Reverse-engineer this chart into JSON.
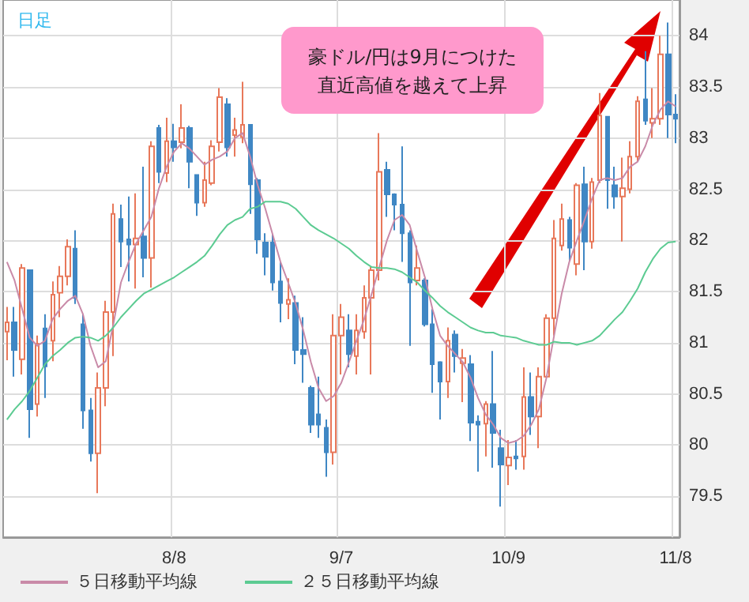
{
  "chart_data": {
    "type": "candlestick",
    "title": "日足",
    "annotations": [
      "豪ドル/円は9月につけた",
      "直近高値を越えて上昇"
    ],
    "categories": [
      null,
      null,
      null,
      null,
      null,
      null,
      null,
      null,
      null,
      null,
      null,
      null,
      null,
      null,
      null,
      null,
      null,
      null,
      null,
      null,
      null,
      null,
      "8/8",
      null,
      null,
      null,
      null,
      null,
      null,
      null,
      null,
      null,
      null,
      null,
      null,
      null,
      null,
      null,
      null,
      null,
      null,
      null,
      null,
      null,
      "9/7",
      null,
      null,
      null,
      null,
      null,
      null,
      null,
      null,
      null,
      null,
      null,
      null,
      null,
      null,
      null,
      null,
      null,
      null,
      null,
      null,
      null,
      "10/9",
      null,
      null,
      null,
      null,
      null,
      null,
      null,
      null,
      null,
      null,
      null,
      null,
      null,
      null,
      null,
      null,
      null,
      null,
      null,
      null,
      null,
      "11/8"
    ],
    "ohlc": [
      [
        81.11,
        81.35,
        80.83,
        81.2
      ],
      [
        81.2,
        81.35,
        80.67,
        80.93
      ],
      [
        80.84,
        81.77,
        80.69,
        81.73
      ],
      [
        81.71,
        81.71,
        80.07,
        80.35
      ],
      [
        80.4,
        81.07,
        80.28,
        80.99
      ],
      [
        81.14,
        81.28,
        80.46,
        80.77
      ],
      [
        81.02,
        81.6,
        80.82,
        81.47
      ],
      [
        81.49,
        81.75,
        81.25,
        81.65
      ],
      [
        81.65,
        82.01,
        81.56,
        81.94
      ],
      [
        81.92,
        82.1,
        81.38,
        81.44
      ],
      [
        81.18,
        81.28,
        80.16,
        80.34
      ],
      [
        80.34,
        80.46,
        79.84,
        79.92
      ],
      [
        79.92,
        80.71,
        79.53,
        80.56
      ],
      [
        80.56,
        81.41,
        80.38,
        81.3
      ],
      [
        81.3,
        82.36,
        80.87,
        82.26
      ],
      [
        82.21,
        82.35,
        81.74,
        81.99
      ],
      [
        82.01,
        82.43,
        81.6,
        81.96
      ],
      [
        81.96,
        82.46,
        81.53,
        82.02
      ],
      [
        82.04,
        82.72,
        81.64,
        81.83
      ],
      [
        81.83,
        82.97,
        81.54,
        82.92
      ],
      [
        83.1,
        83.13,
        82.56,
        82.67
      ],
      [
        82.66,
        83.2,
        82.57,
        82.97
      ],
      [
        82.97,
        83.14,
        82.77,
        82.91
      ],
      [
        82.96,
        83.33,
        82.9,
        83.1
      ],
      [
        83.1,
        83.12,
        82.51,
        82.77
      ],
      [
        82.64,
        82.64,
        82.24,
        82.37
      ],
      [
        82.37,
        82.77,
        82.33,
        82.59
      ],
      [
        82.56,
        82.98,
        82.54,
        82.92
      ],
      [
        82.96,
        83.49,
        82.87,
        83.4
      ],
      [
        83.33,
        83.39,
        82.82,
        82.91
      ],
      [
        83.03,
        83.2,
        82.82,
        83.08
      ],
      [
        83.01,
        83.55,
        82.95,
        83.13
      ],
      [
        83.13,
        83.13,
        82.26,
        82.55
      ],
      [
        82.59,
        82.61,
        81.87,
        82.01
      ],
      [
        81.98,
        82.07,
        81.66,
        81.84
      ],
      [
        81.98,
        82.06,
        81.51,
        81.59
      ],
      [
        81.6,
        81.79,
        81.2,
        81.39
      ],
      [
        81.38,
        81.63,
        81.23,
        81.42
      ],
      [
        81.39,
        81.46,
        80.79,
        80.93
      ],
      [
        80.93,
        81.25,
        80.61,
        80.89
      ],
      [
        80.56,
        80.58,
        80.12,
        80.2
      ],
      [
        80.3,
        80.67,
        80.07,
        80.2
      ],
      [
        80.17,
        80.25,
        79.69,
        79.93
      ],
      [
        79.93,
        81.28,
        79.81,
        81.07
      ],
      [
        81.07,
        81.38,
        80.69,
        81.25
      ],
      [
        81.12,
        81.28,
        80.76,
        80.89
      ],
      [
        80.87,
        81.28,
        80.69,
        81.12
      ],
      [
        81.11,
        81.56,
        81.04,
        81.44
      ],
      [
        81.44,
        81.74,
        80.69,
        81.71
      ],
      [
        81.71,
        83.05,
        81.61,
        82.67
      ],
      [
        82.69,
        82.77,
        82.23,
        82.45
      ],
      [
        82.45,
        82.46,
        82.1,
        82.35
      ],
      [
        82.35,
        82.92,
        81.79,
        82.07
      ],
      [
        82.07,
        82.1,
        80.97,
        81.59
      ],
      [
        81.61,
        81.95,
        81.56,
        81.73
      ],
      [
        81.61,
        81.63,
        81.16,
        81.18
      ],
      [
        81.18,
        81.33,
        80.51,
        80.79
      ],
      [
        80.81,
        80.82,
        80.25,
        80.62
      ],
      [
        80.62,
        81.15,
        80.46,
        81.02
      ],
      [
        81.08,
        81.12,
        80.71,
        80.87
      ],
      [
        80.8,
        80.94,
        80.42,
        80.85
      ],
      [
        80.79,
        80.88,
        80.04,
        80.22
      ],
      [
        80.23,
        80.29,
        79.74,
        80.2
      ],
      [
        80.21,
        80.43,
        79.89,
        80.4
      ],
      [
        80.4,
        80.92,
        79.78,
        80.12
      ],
      [
        79.97,
        80.15,
        79.4,
        79.81
      ],
      [
        79.8,
        80.05,
        79.61,
        79.88
      ],
      [
        79.89,
        80.05,
        79.76,
        79.87
      ],
      [
        79.89,
        80.76,
        79.76,
        80.47
      ],
      [
        80.47,
        80.71,
        80.1,
        80.28
      ],
      [
        80.28,
        80.76,
        79.97,
        80.67
      ],
      [
        80.67,
        81.28,
        80.66,
        81.24
      ],
      [
        81.24,
        82.2,
        81.07,
        82.02
      ],
      [
        81.95,
        82.36,
        81.9,
        82.21
      ],
      [
        82.2,
        82.23,
        81.8,
        81.93
      ],
      [
        81.77,
        82.56,
        81.66,
        82.54
      ],
      [
        82.55,
        82.72,
        81.71,
        81.99
      ],
      [
        81.99,
        82.61,
        81.92,
        82.57
      ],
      [
        82.59,
        83.44,
        82.56,
        83.22
      ],
      [
        83.21,
        83.21,
        82.31,
        82.59
      ],
      [
        82.54,
        82.72,
        82.31,
        82.43
      ],
      [
        82.43,
        82.81,
        81.99,
        82.51
      ],
      [
        82.5,
        82.97,
        82.46,
        82.82
      ],
      [
        82.82,
        83.41,
        82.77,
        83.36
      ],
      [
        83.38,
        83.85,
        83.13,
        83.17
      ],
      [
        83.15,
        83.49,
        83.0,
        83.19
      ],
      [
        83.19,
        84.0,
        83.13,
        83.82
      ],
      [
        83.82,
        84.13,
        83.0,
        83.23
      ],
      [
        83.23,
        83.43,
        82.95,
        83.19
      ]
    ],
    "colors": [
      "#e8785a",
      "#3f87c4",
      "#e8785a",
      "#3f87c4",
      "#e8785a",
      "#3f87c4",
      "#e8785a",
      "#e8785a",
      "#e8785a",
      "#3f87c4",
      "#3f87c4",
      "#3f87c4",
      "#e8785a",
      "#e8785a",
      "#e8785a",
      "#3f87c4",
      "#3f87c4",
      "#e8785a",
      "#3f87c4",
      "#e8785a",
      "#3f87c4",
      "#e8785a",
      "#3f87c4",
      "#e8785a",
      "#3f87c4",
      "#3f87c4",
      "#e8785a",
      "#e8785a",
      "#e8785a",
      "#3f87c4",
      "#e8785a",
      "#e8785a",
      "#3f87c4",
      "#3f87c4",
      "#3f87c4",
      "#3f87c4",
      "#3f87c4",
      "#e8785a",
      "#3f87c4",
      "#3f87c4",
      "#3f87c4",
      "#3f87c4",
      "#3f87c4",
      "#e8785a",
      "#e8785a",
      "#3f87c4",
      "#e8785a",
      "#e8785a",
      "#e8785a",
      "#e8785a",
      "#3f87c4",
      "#3f87c4",
      "#3f87c4",
      "#3f87c4",
      "#e8785a",
      "#3f87c4",
      "#3f87c4",
      "#3f87c4",
      "#e8785a",
      "#3f87c4",
      "#e8785a",
      "#3f87c4",
      "#3f87c4",
      "#e8785a",
      "#3f87c4",
      "#3f87c4",
      "#e8785a",
      "#3f87c4",
      "#e8785a",
      "#3f87c4",
      "#e8785a",
      "#e8785a",
      "#e8785a",
      "#e8785a",
      "#3f87c4",
      "#e8785a",
      "#3f87c4",
      "#e8785a",
      "#e8785a",
      "#3f87c4",
      "#3f87c4",
      "#e8785a",
      "#e8785a",
      "#e8785a",
      "#3f87c4",
      "#e8785a",
      "#e8785a",
      "#3f87c4",
      "#3f87c4"
    ],
    "series": [
      {
        "type": "line",
        "name": "５日移動平均線",
        "color": "#c98aa8",
        "values": [
          81.79,
          81.61,
          81.33,
          81.05,
          80.97,
          81.02,
          81.23,
          81.33,
          81.41,
          81.46,
          81.28,
          80.97,
          80.76,
          80.82,
          81.18,
          81.59,
          81.79,
          81.97,
          82.1,
          82.23,
          82.51,
          82.72,
          82.87,
          82.95,
          82.9,
          82.82,
          82.74,
          82.79,
          82.82,
          82.87,
          83.0,
          83.05,
          82.82,
          82.54,
          82.31,
          82.05,
          81.79,
          81.59,
          81.38,
          81.12,
          80.81,
          80.56,
          80.43,
          80.48,
          80.61,
          80.81,
          81.02,
          81.23,
          81.48,
          81.74,
          82.0,
          82.2,
          82.25,
          82.15,
          81.89,
          81.64,
          81.33,
          81.07,
          80.97,
          80.89,
          80.81,
          80.66,
          80.46,
          80.3,
          80.2,
          80.07,
          80.02,
          80.04,
          80.09,
          80.2,
          80.35,
          80.66,
          81.07,
          81.48,
          81.79,
          82.0,
          82.2,
          82.41,
          82.59,
          82.61,
          82.59,
          82.61,
          82.72,
          82.77,
          82.92,
          83.13,
          83.28,
          83.36,
          83.31
        ]
      },
      {
        "type": "line",
        "name": "２５日移動平均線",
        "color": "#5ccb92",
        "values": [
          80.25,
          80.35,
          80.43,
          80.53,
          80.66,
          80.79,
          80.87,
          80.93,
          81.0,
          81.05,
          81.06,
          81.05,
          81.02,
          81.07,
          81.15,
          81.25,
          81.33,
          81.41,
          81.48,
          81.52,
          81.56,
          81.6,
          81.64,
          81.69,
          81.74,
          81.79,
          81.85,
          81.95,
          82.06,
          82.15,
          82.2,
          82.23,
          82.31,
          82.33,
          82.38,
          82.38,
          82.38,
          82.36,
          82.31,
          82.23,
          82.15,
          82.1,
          82.06,
          82.02,
          81.97,
          81.92,
          81.85,
          81.79,
          81.74,
          81.73,
          81.73,
          81.72,
          81.69,
          81.64,
          81.59,
          81.51,
          81.44,
          81.36,
          81.3,
          81.25,
          81.2,
          81.15,
          81.12,
          81.1,
          81.1,
          81.07,
          81.06,
          81.05,
          81.02,
          81.0,
          80.98,
          80.98,
          81.01,
          81.0,
          81.0,
          80.98,
          81.0,
          81.02,
          81.07,
          81.15,
          81.23,
          81.3,
          81.41,
          81.53,
          81.69,
          81.82,
          81.92,
          81.98,
          81.99
        ]
      }
    ],
    "ylim": [
      79.1,
      84.35
    ],
    "yticks": [
      79.5,
      80,
      80.5,
      81,
      81.5,
      82,
      82.5,
      83,
      83.5,
      84
    ],
    "grid": true,
    "legend": "bottom left"
  }
}
